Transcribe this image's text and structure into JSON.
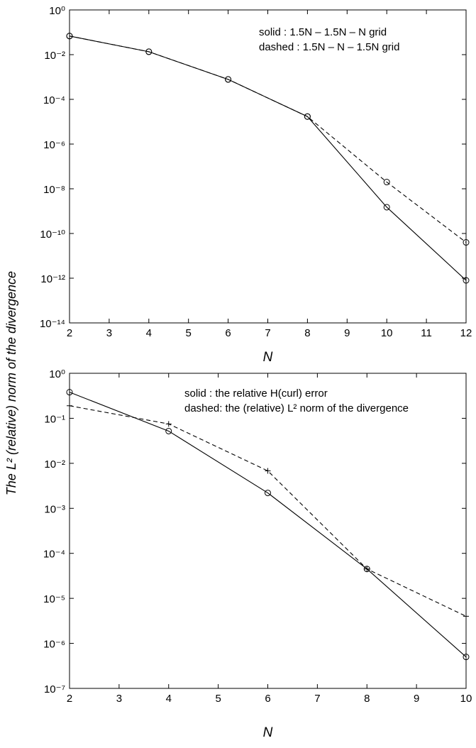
{
  "figure": {
    "ylabel": "The L² (relative) norm of the divergence"
  },
  "chart_data": [
    {
      "type": "line",
      "yscale": "log",
      "xlabel": "N",
      "xlim": [
        2,
        12
      ],
      "ylim": [
        1e-14,
        1
      ],
      "x_ticks": [
        2,
        3,
        4,
        5,
        6,
        7,
        8,
        9,
        10,
        11,
        12
      ],
      "y_ticks": [
        1e-14,
        1e-12,
        1e-10,
        1e-08,
        1e-06,
        0.0001,
        0.01,
        1
      ],
      "grid": false,
      "legend": {
        "placement": "top-right",
        "lines": [
          "solid    : 1.5N – 1.5N – N grid",
          "dashed : 1.5N – N – 1.5N grid"
        ]
      },
      "series": [
        {
          "style": "solid",
          "marker": "circle",
          "x": [
            2,
            4,
            6,
            8,
            10,
            12
          ],
          "y": [
            0.068,
            0.0135,
            0.00078,
            1.7e-05,
            1.5e-09,
            8e-13
          ]
        },
        {
          "style": "dashed",
          "marker": "circle",
          "x": [
            2,
            4,
            6,
            8,
            10,
            12
          ],
          "y": [
            0.068,
            0.0135,
            0.00078,
            1.7e-05,
            2e-08,
            4e-11
          ]
        }
      ]
    },
    {
      "type": "line",
      "yscale": "log",
      "xlabel": "N",
      "xlim": [
        2,
        10
      ],
      "ylim": [
        1e-07,
        1
      ],
      "x_ticks": [
        2,
        3,
        4,
        5,
        6,
        7,
        8,
        9,
        10
      ],
      "y_ticks": [
        1e-07,
        1e-06,
        1e-05,
        0.0001,
        0.001,
        0.01,
        0.1,
        1
      ],
      "grid": false,
      "legend": {
        "placement": "top-right",
        "lines": [
          "solid : the relative H(curl) error",
          "dashed: the (relative) L² norm of the divergence"
        ]
      },
      "series": [
        {
          "style": "solid",
          "marker": "circle",
          "x": [
            2,
            4,
            6,
            8,
            10
          ],
          "y": [
            0.38,
            0.052,
            0.0022,
            4.5e-05,
            5e-07
          ]
        },
        {
          "style": "dashed",
          "marker": "plus",
          "x": [
            2,
            4,
            6,
            8,
            10
          ],
          "y": [
            0.19,
            0.075,
            0.0068,
            4.5e-05,
            4e-06
          ]
        }
      ]
    }
  ]
}
